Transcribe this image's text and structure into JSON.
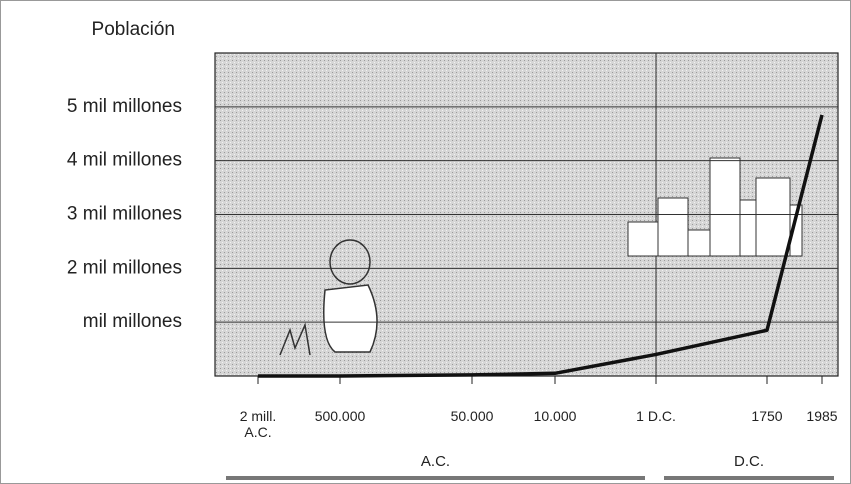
{
  "chart_data": {
    "type": "line",
    "y_label": "Población",
    "categories": [
      "2 mill. A.C.",
      "500.000",
      "50.000",
      "10.000",
      "1 D.C.",
      "1750",
      "1985"
    ],
    "series": [
      {
        "color": "#111111",
        "values": [
          0,
          0,
          0.02,
          0.05,
          0.4,
          0.85,
          4.85
        ]
      }
    ],
    "ylim": [
      0,
      6
    ],
    "yticks": [
      {
        "value": 1,
        "label": "mil millones"
      },
      {
        "value": 2,
        "label": "2 mil millones"
      },
      {
        "value": 3,
        "label": "3 mil millones"
      },
      {
        "value": 4,
        "label": "4 mil millones"
      },
      {
        "value": 5,
        "label": "5 mil millones"
      }
    ],
    "grid": true,
    "eras": [
      "A.C.",
      "D.C."
    ]
  }
}
